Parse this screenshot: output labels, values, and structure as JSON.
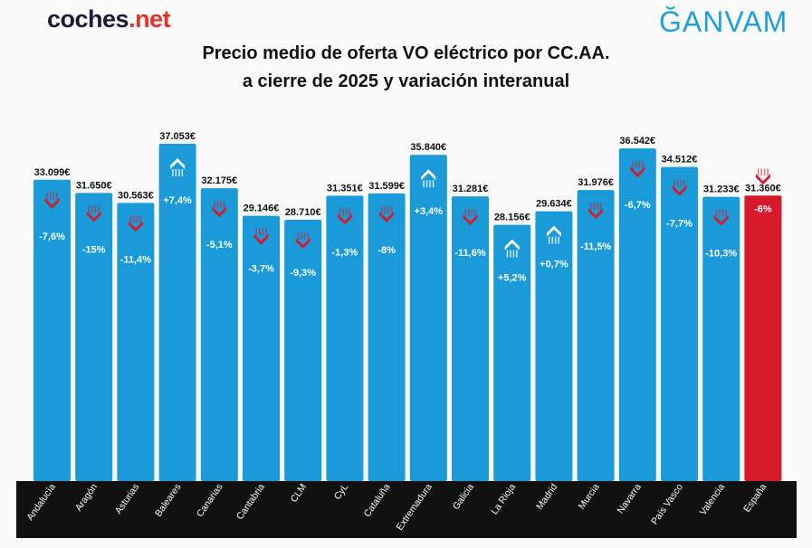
{
  "logos": {
    "left_main": "coches",
    "left_accent": ".net",
    "right": "ĞANVAM"
  },
  "chart_data": {
    "type": "bar",
    "title": "Precio medio de oferta VO eléctrico por CC.AA.",
    "subtitle": "a cierre de 2025 y variación interanual",
    "categories": [
      "Andalucía",
      "Aragón",
      "Asturias",
      "Baleares",
      "Canarias",
      "Cantabria",
      "CLM",
      "CyL",
      "Cataluña",
      "Extremadura",
      "Galicia",
      "La Rioja",
      "Madrid",
      "Murcia",
      "Navarra",
      "País Vasco",
      "Valencia",
      "España"
    ],
    "values": [
      33099,
      31650,
      30563,
      37053,
      32175,
      29146,
      28710,
      31351,
      31599,
      35840,
      31281,
      28156,
      29634,
      31976,
      36542,
      34512,
      31233,
      31360
    ],
    "value_labels": [
      "33.099€",
      "31.650€",
      "30.563€",
      "37.053€",
      "32.175€",
      "29.146€",
      "28.710€",
      "31.351€",
      "31.599€",
      "35.840€",
      "31.281€",
      "28.156€",
      "29.634€",
      "31.976€",
      "36.542€",
      "34.512€",
      "31.233€",
      "31.360€"
    ],
    "yoy_change": [
      "-7,6%",
      "-15%",
      "-11,4%",
      "+7,4%",
      "-5,1%",
      "-3,7%",
      "-9,3%",
      "-1,3%",
      "-8%",
      "+3,4%",
      "-11,6%",
      "+5,2%",
      "+0,7%",
      "-11,5%",
      "-6,7%",
      "-7,7%",
      "-10,3%",
      "-6%"
    ],
    "unit": "€",
    "ylim": [
      0,
      37053
    ],
    "grid": false,
    "colors": {
      "bar": "#1a9ad9",
      "total_bar": "#d71a2a",
      "down_arrow": "#d71a2a",
      "up_arrow": "#ffffff",
      "label_band": "#111111"
    }
  }
}
